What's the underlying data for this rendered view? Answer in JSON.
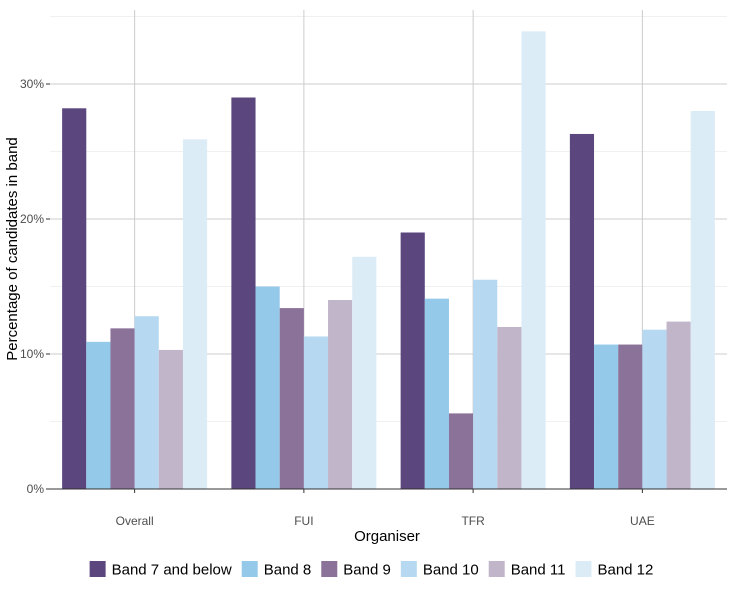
{
  "chart_data": {
    "type": "bar",
    "xlabel": "Organiser",
    "ylabel": "Percentage of candidates in band",
    "categories": [
      "Overall",
      "FUI",
      "TFR",
      "UAE"
    ],
    "ylim": [
      0,
      35
    ],
    "yticks": [
      {
        "value": 0,
        "label": "0%"
      },
      {
        "value": 10,
        "label": "10%"
      },
      {
        "value": 20,
        "label": "20%"
      },
      {
        "value": 30,
        "label": "30%"
      }
    ],
    "grid": true,
    "legend_position": "bottom",
    "series": [
      {
        "name": "Band 7 and below",
        "color": "#5b467d",
        "values": [
          28.2,
          29.0,
          19.0,
          26.3
        ]
      },
      {
        "name": "Band 8",
        "color": "#94c9ea",
        "values": [
          10.9,
          15.0,
          14.1,
          10.7
        ]
      },
      {
        "name": "Band 9",
        "color": "#8a7299",
        "values": [
          11.9,
          13.4,
          5.6,
          10.7
        ]
      },
      {
        "name": "Band 10",
        "color": "#b6d8f0",
        "values": [
          12.8,
          11.3,
          15.5,
          11.8
        ]
      },
      {
        "name": "Band 11",
        "color": "#c1b5ca",
        "values": [
          10.3,
          14.0,
          12.0,
          12.4
        ]
      },
      {
        "name": "Band 12",
        "color": "#dcecf7",
        "values": [
          25.9,
          17.2,
          33.9,
          28.0
        ]
      }
    ]
  }
}
